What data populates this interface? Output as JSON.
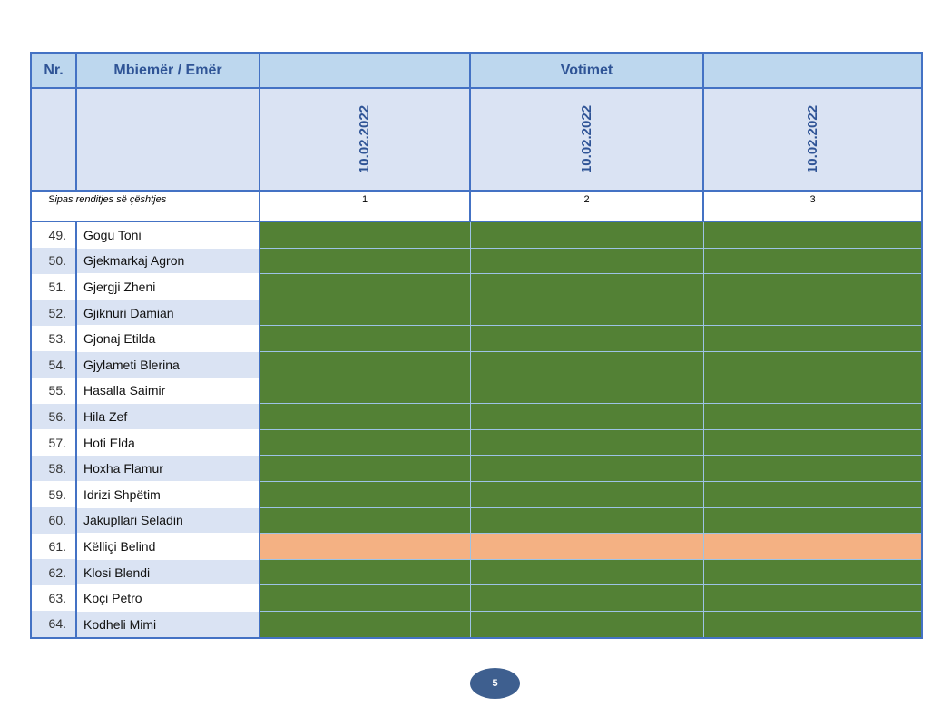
{
  "header": {
    "nr": "Nr.",
    "name": "Mbiemër / Emër",
    "votes": "Votimet",
    "dates": [
      "10.02.2022",
      "10.02.2022",
      "10.02.2022"
    ],
    "order_label": "Sipas renditjes së çështjes",
    "order": [
      "1",
      "2",
      "3"
    ]
  },
  "colors": {
    "green": "#538135",
    "orange": "#f4b183"
  },
  "rows": [
    {
      "nr": "49.",
      "name": "Gogu Toni",
      "votes": [
        "green",
        "green",
        "green"
      ]
    },
    {
      "nr": "50.",
      "name": "Gjekmarkaj  Agron",
      "votes": [
        "green",
        "green",
        "green"
      ]
    },
    {
      "nr": "51.",
      "name": "Gjergji Zheni",
      "votes": [
        "green",
        "green",
        "green"
      ]
    },
    {
      "nr": "52.",
      "name": "Gjiknuri Damian",
      "votes": [
        "green",
        "green",
        "green"
      ]
    },
    {
      "nr": "53.",
      "name": "Gjonaj Etilda",
      "votes": [
        "green",
        "green",
        "green"
      ]
    },
    {
      "nr": "54.",
      "name": "Gjylameti Blerina",
      "votes": [
        "green",
        "green",
        "green"
      ]
    },
    {
      "nr": "55.",
      "name": "Hasalla Saimir",
      "votes": [
        "green",
        "green",
        "green"
      ]
    },
    {
      "nr": "56.",
      "name": "Hila Zef",
      "votes": [
        "green",
        "green",
        "green"
      ]
    },
    {
      "nr": "57.",
      "name": "Hoti Elda",
      "votes": [
        "green",
        "green",
        "green"
      ]
    },
    {
      "nr": "58.",
      "name": "Hoxha Flamur",
      "votes": [
        "green",
        "green",
        "green"
      ]
    },
    {
      "nr": "59.",
      "name": "Idrizi Shpëtim",
      "votes": [
        "green",
        "green",
        "green"
      ]
    },
    {
      "nr": "60.",
      "name": "Jakupllari Seladin",
      "votes": [
        "green",
        "green",
        "green"
      ]
    },
    {
      "nr": "61.",
      "name": "Këlliçi Belind",
      "votes": [
        "orange",
        "orange",
        "orange"
      ]
    },
    {
      "nr": "62.",
      "name": "Klosi Blendi",
      "votes": [
        "green",
        "green",
        "green"
      ]
    },
    {
      "nr": "63.",
      "name": "Koçi Petro",
      "votes": [
        "green",
        "green",
        "green"
      ]
    },
    {
      "nr": "64.",
      "name": "Kodheli Mimi",
      "votes": [
        "green",
        "green",
        "green"
      ]
    }
  ],
  "page_number": "5"
}
